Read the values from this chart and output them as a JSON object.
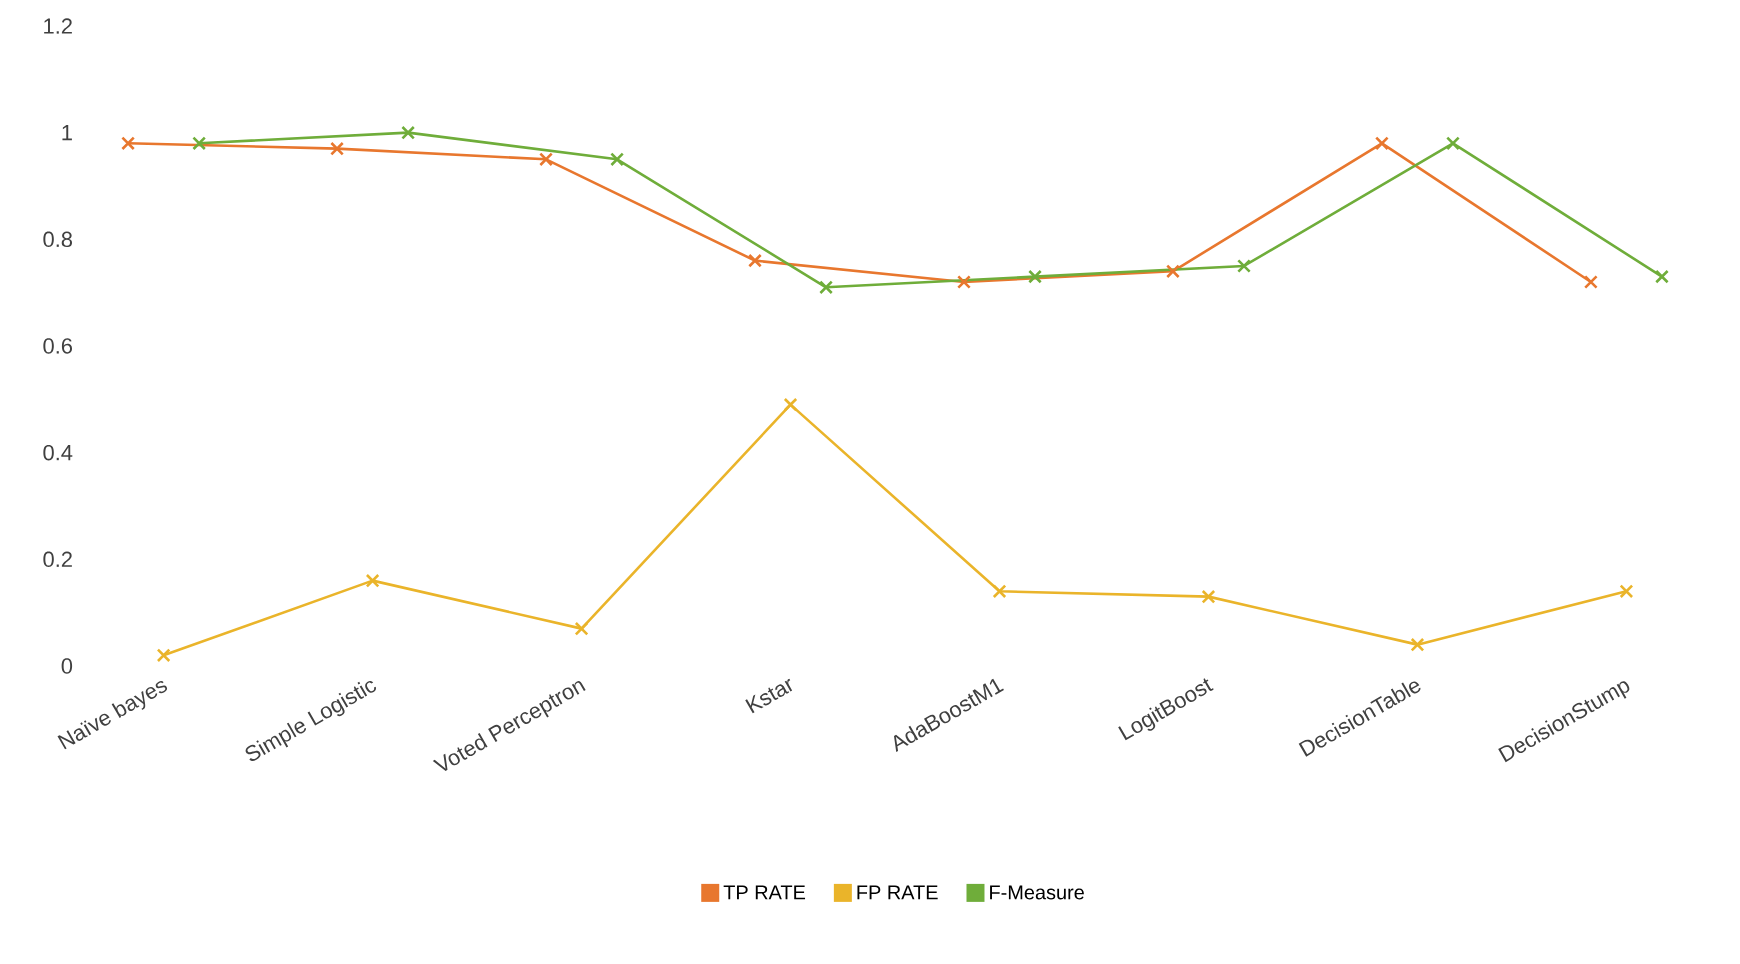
{
  "chart_data": {
    "type": "line",
    "categories": [
      "Naïve bayes",
      "Simple Logistic",
      "Voted Perceptron",
      "Kstar",
      "AdaBoostM1",
      "LogitBoost",
      "DecisionTable",
      "DecisionStump"
    ],
    "series": [
      {
        "name": "TP RATE",
        "color": "#e8772e",
        "values": [
          0.98,
          0.97,
          0.95,
          0.76,
          0.72,
          0.74,
          0.98,
          0.72
        ]
      },
      {
        "name": "FP RATE",
        "color": "#eab42a",
        "values": [
          0.02,
          0.16,
          0.07,
          0.49,
          0.14,
          0.13,
          0.04,
          0.14
        ]
      },
      {
        "name": "F-Measure",
        "color": "#6fad3a",
        "values": [
          0.98,
          1.0,
          0.95,
          0.71,
          0.73,
          0.75,
          0.98,
          0.73
        ]
      }
    ],
    "ylim": [
      0,
      1.2
    ],
    "yticks": [
      0,
      0.2,
      0.4,
      0.6,
      0.8,
      1,
      1.2
    ],
    "grid": false,
    "legend": "bottom",
    "marker": "cross",
    "line_style": "solid"
  }
}
